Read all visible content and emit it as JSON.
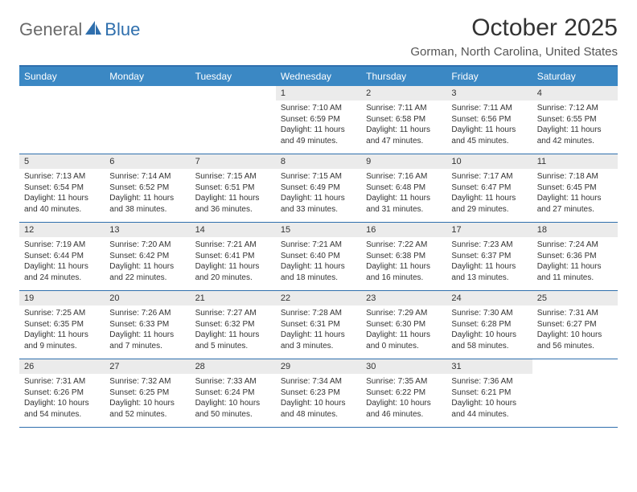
{
  "logo": {
    "text1": "General",
    "text2": "Blue"
  },
  "title": "October 2025",
  "location": "Gorman, North Carolina, United States",
  "colors": {
    "header_bg": "#3b88c4",
    "border": "#2f6fad",
    "date_bg": "#ebebeb",
    "text": "#333333",
    "logo_gray": "#6a6a6a",
    "logo_blue": "#2f6fad"
  },
  "dayNames": [
    "Sunday",
    "Monday",
    "Tuesday",
    "Wednesday",
    "Thursday",
    "Friday",
    "Saturday"
  ],
  "weeks": [
    [
      {},
      {},
      {},
      {
        "date": "1",
        "sunrise": "7:10 AM",
        "sunset": "6:59 PM",
        "daylight": "11 hours and 49 minutes."
      },
      {
        "date": "2",
        "sunrise": "7:11 AM",
        "sunset": "6:58 PM",
        "daylight": "11 hours and 47 minutes."
      },
      {
        "date": "3",
        "sunrise": "7:11 AM",
        "sunset": "6:56 PM",
        "daylight": "11 hours and 45 minutes."
      },
      {
        "date": "4",
        "sunrise": "7:12 AM",
        "sunset": "6:55 PM",
        "daylight": "11 hours and 42 minutes."
      }
    ],
    [
      {
        "date": "5",
        "sunrise": "7:13 AM",
        "sunset": "6:54 PM",
        "daylight": "11 hours and 40 minutes."
      },
      {
        "date": "6",
        "sunrise": "7:14 AM",
        "sunset": "6:52 PM",
        "daylight": "11 hours and 38 minutes."
      },
      {
        "date": "7",
        "sunrise": "7:15 AM",
        "sunset": "6:51 PM",
        "daylight": "11 hours and 36 minutes."
      },
      {
        "date": "8",
        "sunrise": "7:15 AM",
        "sunset": "6:49 PM",
        "daylight": "11 hours and 33 minutes."
      },
      {
        "date": "9",
        "sunrise": "7:16 AM",
        "sunset": "6:48 PM",
        "daylight": "11 hours and 31 minutes."
      },
      {
        "date": "10",
        "sunrise": "7:17 AM",
        "sunset": "6:47 PM",
        "daylight": "11 hours and 29 minutes."
      },
      {
        "date": "11",
        "sunrise": "7:18 AM",
        "sunset": "6:45 PM",
        "daylight": "11 hours and 27 minutes."
      }
    ],
    [
      {
        "date": "12",
        "sunrise": "7:19 AM",
        "sunset": "6:44 PM",
        "daylight": "11 hours and 24 minutes."
      },
      {
        "date": "13",
        "sunrise": "7:20 AM",
        "sunset": "6:42 PM",
        "daylight": "11 hours and 22 minutes."
      },
      {
        "date": "14",
        "sunrise": "7:21 AM",
        "sunset": "6:41 PM",
        "daylight": "11 hours and 20 minutes."
      },
      {
        "date": "15",
        "sunrise": "7:21 AM",
        "sunset": "6:40 PM",
        "daylight": "11 hours and 18 minutes."
      },
      {
        "date": "16",
        "sunrise": "7:22 AM",
        "sunset": "6:38 PM",
        "daylight": "11 hours and 16 minutes."
      },
      {
        "date": "17",
        "sunrise": "7:23 AM",
        "sunset": "6:37 PM",
        "daylight": "11 hours and 13 minutes."
      },
      {
        "date": "18",
        "sunrise": "7:24 AM",
        "sunset": "6:36 PM",
        "daylight": "11 hours and 11 minutes."
      }
    ],
    [
      {
        "date": "19",
        "sunrise": "7:25 AM",
        "sunset": "6:35 PM",
        "daylight": "11 hours and 9 minutes."
      },
      {
        "date": "20",
        "sunrise": "7:26 AM",
        "sunset": "6:33 PM",
        "daylight": "11 hours and 7 minutes."
      },
      {
        "date": "21",
        "sunrise": "7:27 AM",
        "sunset": "6:32 PM",
        "daylight": "11 hours and 5 minutes."
      },
      {
        "date": "22",
        "sunrise": "7:28 AM",
        "sunset": "6:31 PM",
        "daylight": "11 hours and 3 minutes."
      },
      {
        "date": "23",
        "sunrise": "7:29 AM",
        "sunset": "6:30 PM",
        "daylight": "11 hours and 0 minutes."
      },
      {
        "date": "24",
        "sunrise": "7:30 AM",
        "sunset": "6:28 PM",
        "daylight": "10 hours and 58 minutes."
      },
      {
        "date": "25",
        "sunrise": "7:31 AM",
        "sunset": "6:27 PM",
        "daylight": "10 hours and 56 minutes."
      }
    ],
    [
      {
        "date": "26",
        "sunrise": "7:31 AM",
        "sunset": "6:26 PM",
        "daylight": "10 hours and 54 minutes."
      },
      {
        "date": "27",
        "sunrise": "7:32 AM",
        "sunset": "6:25 PM",
        "daylight": "10 hours and 52 minutes."
      },
      {
        "date": "28",
        "sunrise": "7:33 AM",
        "sunset": "6:24 PM",
        "daylight": "10 hours and 50 minutes."
      },
      {
        "date": "29",
        "sunrise": "7:34 AM",
        "sunset": "6:23 PM",
        "daylight": "10 hours and 48 minutes."
      },
      {
        "date": "30",
        "sunrise": "7:35 AM",
        "sunset": "6:22 PM",
        "daylight": "10 hours and 46 minutes."
      },
      {
        "date": "31",
        "sunrise": "7:36 AM",
        "sunset": "6:21 PM",
        "daylight": "10 hours and 44 minutes."
      },
      {}
    ]
  ]
}
